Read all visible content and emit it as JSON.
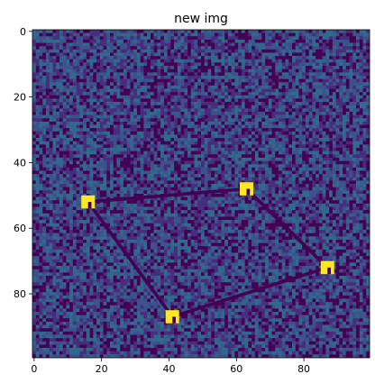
{
  "chart_data": {
    "type": "heatmap",
    "title": "new img",
    "xlabel": "",
    "ylabel": "",
    "xlim": [
      -0.5,
      99.5
    ],
    "ylim": [
      99.5,
      -0.5
    ],
    "x_ticks": [
      0,
      20,
      40,
      60,
      80
    ],
    "y_ticks": [
      0,
      20,
      40,
      60,
      80
    ],
    "grid": false,
    "legend": "none",
    "colormap": "viridis",
    "grid_size": [
      100,
      100
    ],
    "background": {
      "description": "random noise",
      "colors": [
        "#440154",
        "#3b528b",
        "#31688e",
        "#472d7b"
      ]
    },
    "markers": [
      {
        "x": 16,
        "y": 52,
        "size": 4,
        "color": "#fde725"
      },
      {
        "x": 63,
        "y": 48,
        "size": 4,
        "color": "#fde725"
      },
      {
        "x": 87,
        "y": 72,
        "size": 4,
        "color": "#fde725"
      },
      {
        "x": 41,
        "y": 87,
        "size": 4,
        "color": "#fde725"
      }
    ],
    "lines": [
      {
        "from": [
          16,
          52
        ],
        "to": [
          63,
          48
        ],
        "color": "#440154"
      },
      {
        "from": [
          63,
          48
        ],
        "to": [
          87,
          72
        ],
        "color": "#440154"
      },
      {
        "from": [
          87,
          72
        ],
        "to": [
          41,
          87
        ],
        "color": "#440154"
      },
      {
        "from": [
          41,
          87
        ],
        "to": [
          16,
          52
        ],
        "color": "#440154"
      }
    ]
  }
}
